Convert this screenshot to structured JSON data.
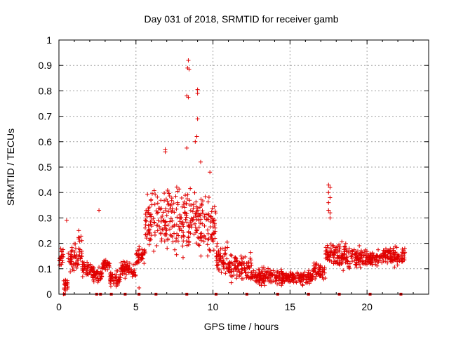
{
  "chart_data": {
    "type": "scatter",
    "title": "Day 031 of 2018, SRMTID for receiver gamb",
    "xlabel": "GPS time / hours",
    "ylabel": "SRMTID / TECUs",
    "xlim": [
      0,
      24
    ],
    "ylim": [
      0,
      1
    ],
    "xticks": [
      0,
      5,
      10,
      15,
      20
    ],
    "yticks": [
      0,
      0.1,
      0.2,
      0.3,
      0.4,
      0.5,
      0.6,
      0.7,
      0.8,
      0.9,
      1
    ],
    "grid": true,
    "marker": "plus",
    "color": "#e00000",
    "outliers": [
      {
        "x": 8.4,
        "y": 0.92
      },
      {
        "x": 8.35,
        "y": 0.89
      },
      {
        "x": 8.45,
        "y": 0.885
      },
      {
        "x": 8.3,
        "y": 0.78
      },
      {
        "x": 8.4,
        "y": 0.775
      },
      {
        "x": 9.0,
        "y": 0.805
      },
      {
        "x": 9.0,
        "y": 0.79
      },
      {
        "x": 9.0,
        "y": 0.69
      },
      {
        "x": 8.95,
        "y": 0.62
      },
      {
        "x": 8.85,
        "y": 0.6
      },
      {
        "x": 8.3,
        "y": 0.575
      },
      {
        "x": 6.9,
        "y": 0.57
      },
      {
        "x": 6.9,
        "y": 0.56
      },
      {
        "x": 9.2,
        "y": 0.52
      },
      {
        "x": 9.8,
        "y": 0.48
      },
      {
        "x": 2.6,
        "y": 0.33
      },
      {
        "x": 0.5,
        "y": 0.29
      },
      {
        "x": 17.5,
        "y": 0.43
      },
      {
        "x": 17.6,
        "y": 0.42
      },
      {
        "x": 17.5,
        "y": 0.4
      },
      {
        "x": 17.6,
        "y": 0.38
      },
      {
        "x": 17.5,
        "y": 0.36
      },
      {
        "x": 17.5,
        "y": 0.33
      },
      {
        "x": 17.6,
        "y": 0.32
      },
      {
        "x": 17.6,
        "y": 0.3
      },
      {
        "x": 5.2,
        "y": 0.025
      },
      {
        "x": 0.3,
        "y": 0.0
      }
    ],
    "cloud_envelope": [
      {
        "x_range": [
          0.0,
          0.3
        ],
        "y_range": [
          0.09,
          0.21
        ]
      },
      {
        "x_range": [
          0.3,
          0.6
        ],
        "y_range": [
          0.0,
          0.07
        ]
      },
      {
        "x_range": [
          0.6,
          1.2
        ],
        "y_range": [
          0.07,
          0.22
        ]
      },
      {
        "x_range": [
          1.2,
          1.5
        ],
        "y_range": [
          0.05,
          0.3
        ]
      },
      {
        "x_range": [
          1.5,
          2.2
        ],
        "y_range": [
          0.05,
          0.15
        ]
      },
      {
        "x_range": [
          2.2,
          2.8
        ],
        "y_range": [
          0.03,
          0.12
        ]
      },
      {
        "x_range": [
          2.8,
          3.3
        ],
        "y_range": [
          0.07,
          0.16
        ]
      },
      {
        "x_range": [
          3.3,
          4.0
        ],
        "y_range": [
          0.02,
          0.1
        ]
      },
      {
        "x_range": [
          4.0,
          5.0
        ],
        "y_range": [
          0.05,
          0.14
        ]
      },
      {
        "x_range": [
          5.0,
          5.6
        ],
        "y_range": [
          0.1,
          0.2
        ]
      },
      {
        "x_range": [
          5.6,
          6.5
        ],
        "y_range": [
          0.15,
          0.45
        ]
      },
      {
        "x_range": [
          6.5,
          7.5
        ],
        "y_range": [
          0.12,
          0.5
        ]
      },
      {
        "x_range": [
          7.5,
          8.5
        ],
        "y_range": [
          0.1,
          0.48
        ]
      },
      {
        "x_range": [
          8.5,
          9.5
        ],
        "y_range": [
          0.1,
          0.45
        ]
      },
      {
        "x_range": [
          9.5,
          10.2
        ],
        "y_range": [
          0.12,
          0.4
        ]
      },
      {
        "x_range": [
          10.2,
          11.0
        ],
        "y_range": [
          0.05,
          0.22
        ]
      },
      {
        "x_range": [
          11.0,
          12.5
        ],
        "y_range": [
          0.03,
          0.18
        ]
      },
      {
        "x_range": [
          12.5,
          14.5
        ],
        "y_range": [
          0.02,
          0.12
        ]
      },
      {
        "x_range": [
          14.5,
          16.5
        ],
        "y_range": [
          0.03,
          0.1
        ]
      },
      {
        "x_range": [
          16.5,
          17.3
        ],
        "y_range": [
          0.04,
          0.14
        ]
      },
      {
        "x_range": [
          17.3,
          18.0
        ],
        "y_range": [
          0.1,
          0.22
        ]
      },
      {
        "x_range": [
          18.0,
          19.0
        ],
        "y_range": [
          0.08,
          0.22
        ]
      },
      {
        "x_range": [
          19.0,
          20.0
        ],
        "y_range": [
          0.08,
          0.2
        ]
      },
      {
        "x_range": [
          20.0,
          21.0
        ],
        "y_range": [
          0.1,
          0.18
        ]
      },
      {
        "x_range": [
          21.0,
          22.5
        ],
        "y_range": [
          0.1,
          0.2
        ]
      }
    ],
    "zero_markers_x": [
      0.35,
      2.45,
      2.7,
      3.4,
      4.3,
      5.2,
      6.3,
      8.3,
      10.2,
      12.2,
      14.2,
      16.2,
      18.2,
      20.2,
      22.2
    ]
  }
}
